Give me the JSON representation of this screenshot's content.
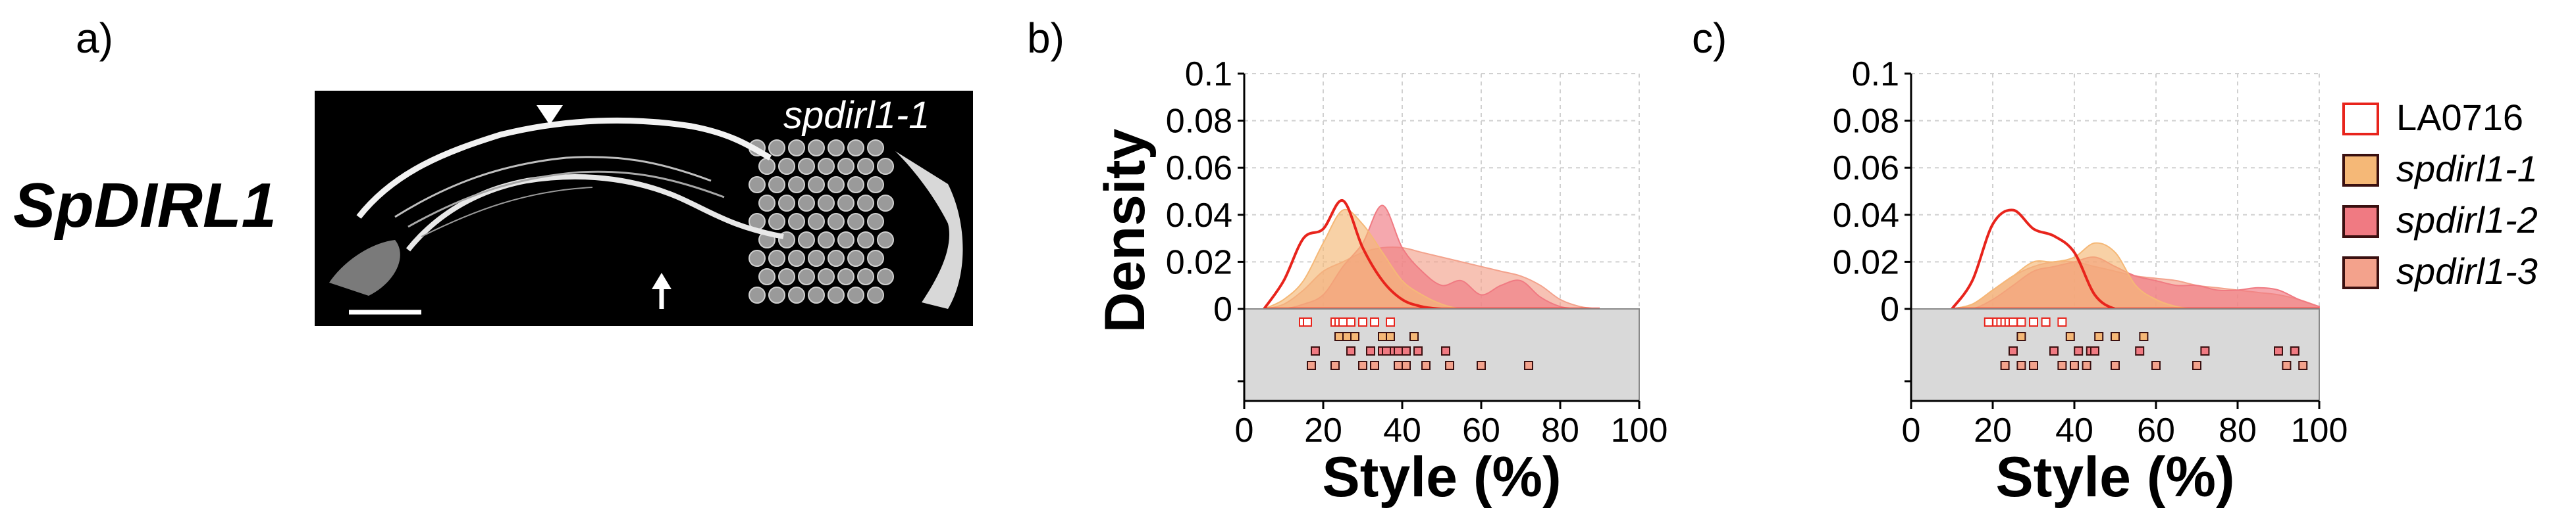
{
  "panels": {
    "a": {
      "label": "a)",
      "gene": "SpDIRL1",
      "image_label": "spdirl1-1"
    },
    "b": {
      "label": "b)"
    },
    "c": {
      "label": "c)"
    }
  },
  "colors": {
    "LA0716": "#e8241c",
    "spdirl1-1": "#f5b877",
    "spdirl1-2": "#f07a82",
    "spdirl1-3": "#f3a28c",
    "rug_bg": "#d9d9d9",
    "grid": "#d0d0d0"
  },
  "legend": [
    {
      "key": "LA0716",
      "label": "LA0716",
      "hollow": true
    },
    {
      "key": "spdirl1-1",
      "label": "spdirl1-1",
      "hollow": false
    },
    {
      "key": "spdirl1-2",
      "label": "spdirl1-2",
      "hollow": false
    },
    {
      "key": "spdirl1-3",
      "label": "spdirl1-3",
      "hollow": false
    }
  ],
  "chart_data": [
    {
      "panel": "b",
      "type": "area",
      "ylabel": "Density",
      "xlabel": "Style (%)",
      "xlim": [
        0,
        100
      ],
      "ylim": [
        0,
        0.1
      ],
      "xticks": [
        "0",
        "20",
        "40",
        "60",
        "80",
        "100"
      ],
      "yticks": [
        "0",
        "0.02",
        "0.04",
        "0.06",
        "0.08",
        "0.1"
      ],
      "grid": true,
      "x": [
        5,
        10,
        15,
        20,
        25,
        30,
        35,
        40,
        45,
        50,
        55,
        60,
        65,
        70,
        75,
        80,
        85,
        90
      ],
      "series": [
        {
          "name": "LA0716",
          "values": [
            0.0,
            0.012,
            0.03,
            0.034,
            0.046,
            0.026,
            0.012,
            0.004,
            0.001,
            0.0,
            0.0,
            0.0,
            0.0,
            0.0,
            0.0,
            0.0,
            0.0,
            0.0
          ]
        },
        {
          "name": "spdirl1-1",
          "values": [
            0.0,
            0.004,
            0.012,
            0.028,
            0.042,
            0.036,
            0.024,
            0.012,
            0.006,
            0.002,
            0.0,
            0.0,
            0.0,
            0.0,
            0.0,
            0.0,
            0.0,
            0.0
          ]
        },
        {
          "name": "spdirl1-2",
          "values": [
            0.0,
            0.0,
            0.002,
            0.006,
            0.018,
            0.028,
            0.044,
            0.026,
            0.016,
            0.01,
            0.012,
            0.006,
            0.01,
            0.012,
            0.005,
            0.001,
            0.0,
            0.0
          ]
        },
        {
          "name": "spdirl1-3",
          "values": [
            0.0,
            0.002,
            0.008,
            0.016,
            0.02,
            0.024,
            0.026,
            0.026,
            0.024,
            0.022,
            0.02,
            0.018,
            0.016,
            0.014,
            0.01,
            0.004,
            0.001,
            0.0
          ]
        }
      ],
      "rug": [
        {
          "name": "LA0716",
          "values": [
            15,
            16,
            23,
            24,
            25,
            27,
            30,
            33,
            37
          ]
        },
        {
          "name": "spdirl1-1",
          "values": [
            24,
            26,
            28,
            35,
            37,
            43
          ]
        },
        {
          "name": "spdirl1-2",
          "values": [
            18,
            27,
            32,
            35,
            36,
            38,
            39,
            41,
            44,
            51
          ]
        },
        {
          "name": "spdirl1-3",
          "values": [
            17,
            23,
            30,
            33,
            39,
            41,
            46,
            52,
            60,
            72
          ]
        }
      ]
    },
    {
      "panel": "c",
      "type": "area",
      "ylabel": "",
      "xlabel": "Style (%)",
      "xlim": [
        0,
        100
      ],
      "ylim": [
        0,
        0.1
      ],
      "xticks": [
        "0",
        "20",
        "40",
        "60",
        "80",
        "100"
      ],
      "yticks": [
        "0",
        "0.02",
        "0.04",
        "0.06",
        "0.08",
        "0.1"
      ],
      "grid": true,
      "x": [
        10,
        15,
        20,
        25,
        30,
        35,
        40,
        45,
        50,
        55,
        60,
        65,
        70,
        75,
        80,
        85,
        90,
        95,
        100
      ],
      "series": [
        {
          "name": "LA0716",
          "values": [
            0.0,
            0.012,
            0.036,
            0.042,
            0.034,
            0.031,
            0.024,
            0.006,
            0.0,
            0.0,
            0.0,
            0.0,
            0.0,
            0.0,
            0.0,
            0.0,
            0.0,
            0.0,
            0.0
          ]
        },
        {
          "name": "spdirl1-1",
          "values": [
            0.0,
            0.002,
            0.008,
            0.014,
            0.02,
            0.02,
            0.022,
            0.028,
            0.024,
            0.01,
            0.004,
            0.001,
            0.0,
            0.0,
            0.0,
            0.0,
            0.0,
            0.0,
            0.0
          ]
        },
        {
          "name": "spdirl1-2",
          "values": [
            0.0,
            0.0,
            0.004,
            0.01,
            0.016,
            0.018,
            0.02,
            0.022,
            0.018,
            0.014,
            0.012,
            0.01,
            0.01,
            0.008,
            0.008,
            0.009,
            0.008,
            0.004,
            0.001
          ]
        },
        {
          "name": "spdirl1-3",
          "values": [
            0.0,
            0.002,
            0.008,
            0.014,
            0.018,
            0.02,
            0.02,
            0.018,
            0.016,
            0.014,
            0.013,
            0.012,
            0.01,
            0.009,
            0.008,
            0.007,
            0.006,
            0.004,
            0.001
          ]
        }
      ],
      "rug": [
        {
          "name": "LA0716",
          "values": [
            19,
            21,
            22,
            23,
            24,
            25,
            27,
            30,
            33,
            37
          ]
        },
        {
          "name": "spdirl1-1",
          "values": [
            27,
            39,
            46,
            50,
            57
          ]
        },
        {
          "name": "spdirl1-2",
          "values": [
            25,
            35,
            41,
            44,
            45,
            56,
            72,
            90,
            94
          ]
        },
        {
          "name": "spdirl1-3",
          "values": [
            23,
            27,
            30,
            37,
            40,
            43,
            50,
            60,
            70,
            92,
            96
          ]
        }
      ]
    }
  ]
}
